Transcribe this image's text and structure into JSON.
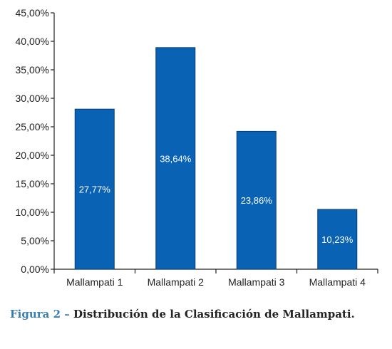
{
  "chart_data": {
    "type": "bar",
    "categories": [
      "Mallampati 1",
      "Mallampati 2",
      "Mallampati 3",
      "Mallampati 4"
    ],
    "values": [
      27.77,
      38.64,
      23.86,
      10.23
    ],
    "bar_heights": [
      28.1,
      38.9,
      24.2,
      10.5
    ],
    "data_labels": [
      "27,77%",
      "38,64%",
      "23,86%",
      "10,23%"
    ],
    "ylim": [
      0,
      45
    ],
    "yticks": [
      0,
      5,
      10,
      15,
      20,
      25,
      30,
      35,
      40,
      45
    ],
    "ytick_labels": [
      "0,00%",
      "5,00%",
      "10,00%",
      "15,00%",
      "20,00%",
      "25,00%",
      "30,00%",
      "35,00%",
      "40,00%",
      "45,00%"
    ],
    "bar_color": "#0a62b5",
    "grid": false,
    "legend": "none"
  },
  "caption": {
    "label": "Figura 2 –",
    "text": "Distribución de la Clasificación de Mallampati.",
    "label_color": "#3a7fb0"
  }
}
